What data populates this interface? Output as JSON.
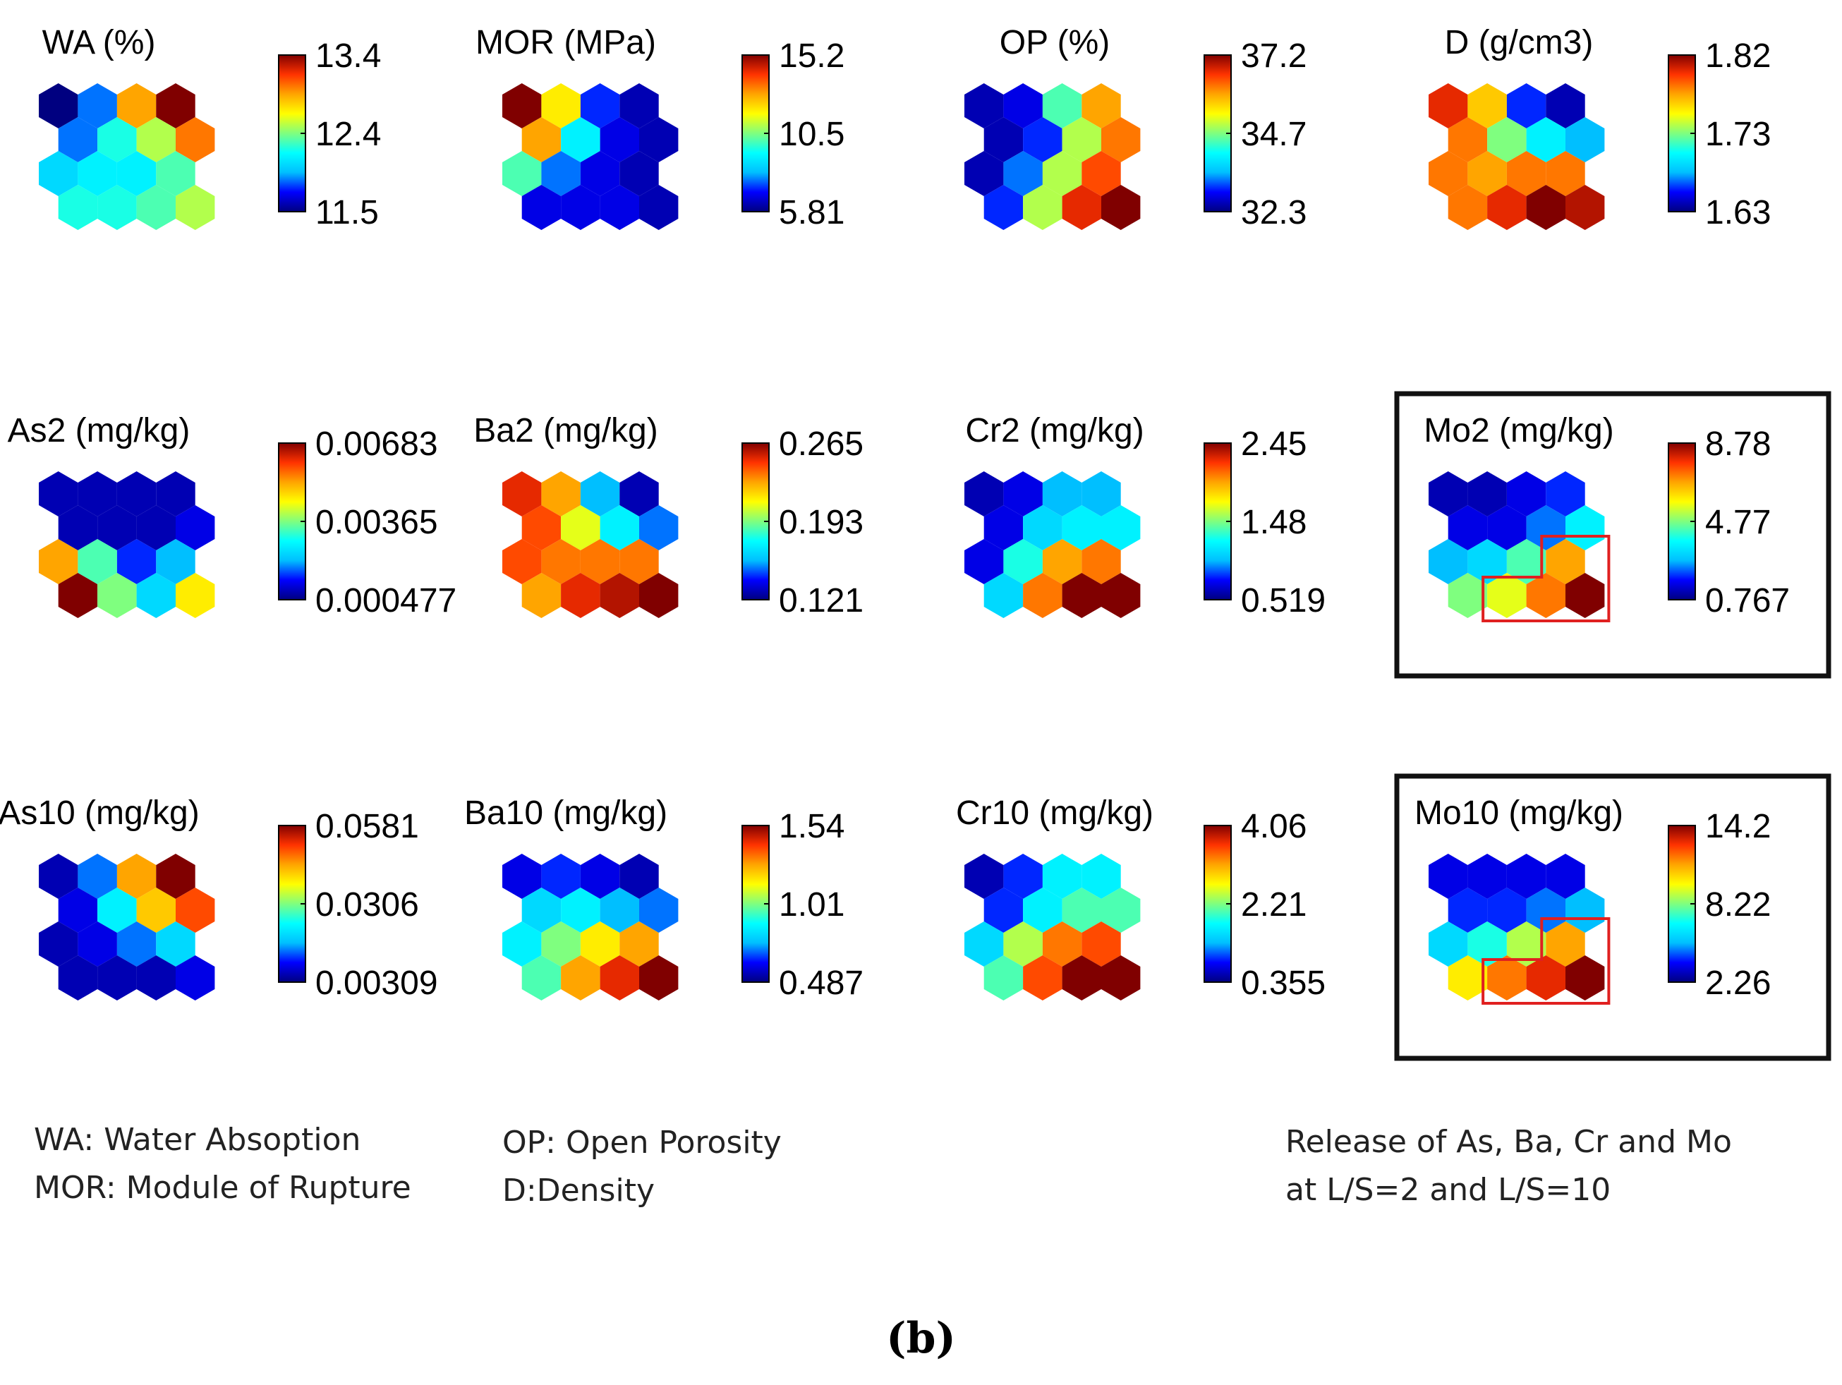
{
  "panel_label": "(b)",
  "notes": [
    {
      "lines": [
        "WA: Water Absoption",
        "MOR: Module of Rupture"
      ]
    },
    {
      "lines": [
        "OP: Open Porosity",
        "D:Density"
      ]
    },
    {
      "lines": [
        "Release of As, Ba, Cr and Mo",
        "at L/S=2 and L/S=10"
      ]
    }
  ],
  "chart_data": {
    "type": "heatmap",
    "description_type": "som_component_planes",
    "grid": {
      "rows": 4,
      "cols": 4,
      "cell_shape": "hexagon"
    },
    "colormap": [
      "#000080",
      "#0000ff",
      "#00bfff",
      "#00ffff",
      "#7fff7f",
      "#ffff00",
      "#ffa500",
      "#ff3300",
      "#800000"
    ],
    "highlight_color": "#e02020",
    "box_color": "#111111",
    "planes": [
      {
        "title": "WA (%)",
        "ticks": [
          "13.4",
          "12.4",
          "11.5"
        ],
        "boxed": false,
        "highlight": false,
        "values": [
          [
            0.0,
            0.2,
            0.75,
            1.0
          ],
          [
            0.2,
            0.4,
            0.55,
            0.8
          ],
          [
            0.3,
            0.35,
            0.35,
            0.45
          ],
          [
            0.4,
            0.4,
            0.45,
            0.55
          ]
        ]
      },
      {
        "title": "MOR (MPa)",
        "ticks": [
          "15.2",
          "10.5",
          "5.81"
        ],
        "boxed": false,
        "highlight": false,
        "values": [
          [
            1.0,
            0.65,
            0.15,
            0.05
          ],
          [
            0.75,
            0.35,
            0.1,
            0.05
          ],
          [
            0.45,
            0.2,
            0.1,
            0.05
          ],
          [
            0.1,
            0.1,
            0.1,
            0.05
          ]
        ]
      },
      {
        "title": "OP (%)",
        "ticks": [
          "37.2",
          "34.7",
          "32.3"
        ],
        "boxed": false,
        "highlight": false,
        "values": [
          [
            0.05,
            0.1,
            0.45,
            0.75
          ],
          [
            0.05,
            0.15,
            0.55,
            0.8
          ],
          [
            0.05,
            0.2,
            0.55,
            0.85
          ],
          [
            0.15,
            0.55,
            0.9,
            1.0
          ]
        ]
      },
      {
        "title": "D (g/cm3)",
        "ticks": [
          "1.82",
          "1.73",
          "1.63"
        ],
        "boxed": false,
        "highlight": false,
        "values": [
          [
            0.9,
            0.7,
            0.15,
            0.05
          ],
          [
            0.8,
            0.5,
            0.35,
            0.25
          ],
          [
            0.8,
            0.75,
            0.8,
            0.8
          ],
          [
            0.8,
            0.9,
            1.0,
            0.95
          ]
        ]
      },
      {
        "title": "As2 (mg/kg)",
        "ticks": [
          "0.00683",
          "0.00365",
          "0.000477"
        ],
        "boxed": false,
        "highlight": false,
        "values": [
          [
            0.05,
            0.05,
            0.05,
            0.05
          ],
          [
            0.05,
            0.05,
            0.05,
            0.1
          ],
          [
            0.75,
            0.45,
            0.15,
            0.25
          ],
          [
            1.0,
            0.5,
            0.3,
            0.65
          ]
        ]
      },
      {
        "title": "Ba2 (mg/kg)",
        "ticks": [
          "0.265",
          "0.193",
          "0.121"
        ],
        "boxed": false,
        "highlight": false,
        "values": [
          [
            0.9,
            0.75,
            0.25,
            0.05
          ],
          [
            0.85,
            0.6,
            0.35,
            0.2
          ],
          [
            0.85,
            0.8,
            0.8,
            0.8
          ],
          [
            0.75,
            0.9,
            0.95,
            1.0
          ]
        ]
      },
      {
        "title": "Cr2 (mg/kg)",
        "ticks": [
          "2.45",
          "1.48",
          "0.519"
        ],
        "boxed": false,
        "highlight": false,
        "values": [
          [
            0.05,
            0.1,
            0.25,
            0.25
          ],
          [
            0.1,
            0.3,
            0.35,
            0.35
          ],
          [
            0.1,
            0.4,
            0.75,
            0.8
          ],
          [
            0.3,
            0.8,
            1.0,
            1.0
          ]
        ]
      },
      {
        "title": "Mo2 (mg/kg)",
        "ticks": [
          "8.78",
          "4.77",
          "0.767"
        ],
        "boxed": true,
        "highlight": true,
        "values": [
          [
            0.05,
            0.05,
            0.1,
            0.15
          ],
          [
            0.1,
            0.1,
            0.2,
            0.35
          ],
          [
            0.25,
            0.3,
            0.45,
            0.75
          ],
          [
            0.5,
            0.6,
            0.8,
            1.0
          ]
        ]
      },
      {
        "title": "As10 (mg/kg)",
        "ticks": [
          "0.0581",
          "0.0306",
          "0.00309"
        ],
        "boxed": false,
        "highlight": false,
        "values": [
          [
            0.05,
            0.2,
            0.75,
            1.0
          ],
          [
            0.1,
            0.35,
            0.7,
            0.85
          ],
          [
            0.05,
            0.1,
            0.2,
            0.3
          ],
          [
            0.05,
            0.05,
            0.05,
            0.1
          ]
        ]
      },
      {
        "title": "Ba10 (mg/kg)",
        "ticks": [
          "1.54",
          "1.01",
          "0.487"
        ],
        "boxed": false,
        "highlight": false,
        "values": [
          [
            0.1,
            0.15,
            0.1,
            0.05
          ],
          [
            0.3,
            0.35,
            0.25,
            0.2
          ],
          [
            0.35,
            0.5,
            0.65,
            0.75
          ],
          [
            0.45,
            0.75,
            0.9,
            1.0
          ]
        ]
      },
      {
        "title": "Cr10 (mg/kg)",
        "ticks": [
          "4.06",
          "2.21",
          "0.355"
        ],
        "boxed": false,
        "highlight": false,
        "values": [
          [
            0.05,
            0.15,
            0.35,
            0.35
          ],
          [
            0.15,
            0.35,
            0.45,
            0.45
          ],
          [
            0.3,
            0.55,
            0.8,
            0.85
          ],
          [
            0.45,
            0.85,
            1.0,
            1.0
          ]
        ]
      },
      {
        "title": "Mo10 (mg/kg)",
        "ticks": [
          "14.2",
          "8.22",
          "2.26"
        ],
        "boxed": true,
        "highlight": true,
        "values": [
          [
            0.1,
            0.1,
            0.1,
            0.1
          ],
          [
            0.15,
            0.15,
            0.2,
            0.25
          ],
          [
            0.3,
            0.4,
            0.55,
            0.75
          ],
          [
            0.65,
            0.8,
            0.9,
            1.0
          ]
        ]
      }
    ]
  }
}
